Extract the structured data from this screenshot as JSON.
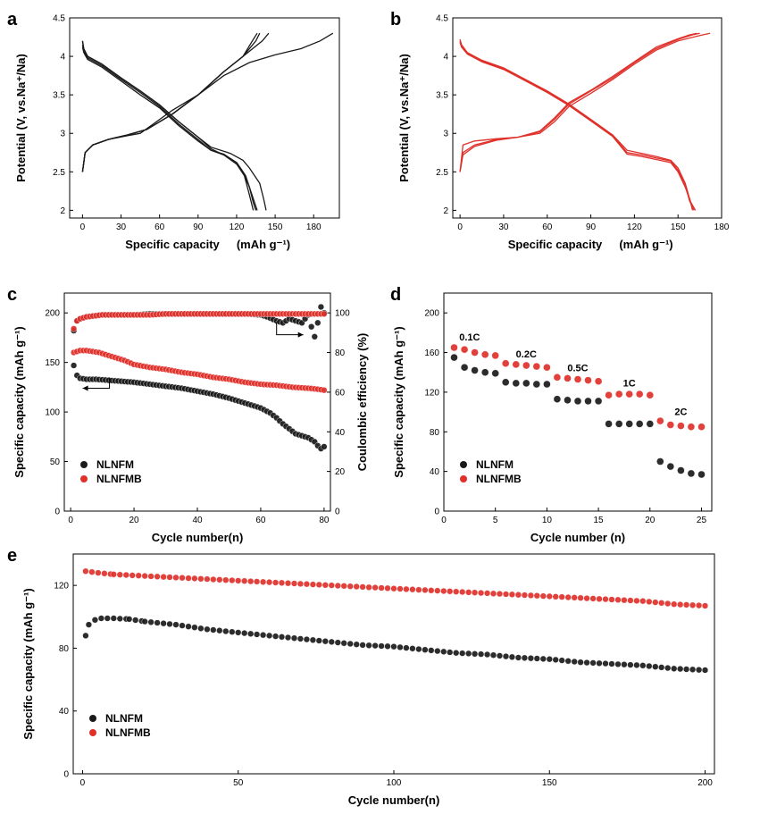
{
  "colors": {
    "black_series": "#1a1a1a",
    "red_series": "#e0302a",
    "axis": "#000000"
  },
  "chart_data": [
    {
      "panel": "a",
      "type": "line",
      "xlabel": "Specific capacity",
      "xunit": "(mAh g⁻¹)",
      "ylabel": "Potential (V, vs.Na⁺/Na)",
      "xlim": [
        -10,
        200
      ],
      "ylim": [
        1.9,
        4.5
      ],
      "xticks": [
        0,
        30,
        60,
        90,
        120,
        150,
        180
      ],
      "yticks": [
        2.0,
        2.5,
        3.0,
        3.5,
        4.0,
        4.5
      ],
      "color": "#1a1a1a",
      "series": [
        {
          "name": "charge-1",
          "x": [
            0,
            2,
            8,
            20,
            35,
            45,
            55,
            70,
            90,
            110,
            130,
            150,
            170,
            185,
            195
          ],
          "y": [
            2.5,
            2.75,
            2.85,
            2.92,
            2.97,
            3.0,
            3.12,
            3.3,
            3.5,
            3.75,
            3.92,
            4.02,
            4.1,
            4.2,
            4.3
          ]
        },
        {
          "name": "charge-2",
          "x": [
            0,
            2,
            8,
            20,
            35,
            50,
            70,
            90,
            110,
            125,
            140,
            145
          ],
          "y": [
            2.5,
            2.75,
            2.85,
            2.92,
            2.98,
            3.05,
            3.25,
            3.5,
            3.8,
            4.0,
            4.2,
            4.3
          ]
        },
        {
          "name": "charge-3",
          "x": [
            0,
            2,
            8,
            20,
            35,
            50,
            70,
            90,
            110,
            125,
            135,
            138
          ],
          "y": [
            2.5,
            2.75,
            2.85,
            2.92,
            2.98,
            3.05,
            3.25,
            3.5,
            3.8,
            4.0,
            4.2,
            4.3
          ]
        },
        {
          "name": "charge-4",
          "x": [
            0,
            2,
            8,
            20,
            35,
            50,
            70,
            90,
            110,
            125,
            133,
            136
          ],
          "y": [
            2.5,
            2.75,
            2.85,
            2.92,
            2.98,
            3.05,
            3.25,
            3.5,
            3.8,
            4.0,
            4.22,
            4.3
          ]
        },
        {
          "name": "discharge-1",
          "x": [
            0,
            1,
            4,
            15,
            30,
            45,
            60,
            75,
            90,
            100,
            115,
            125,
            130,
            138,
            141,
            143
          ],
          "y": [
            4.2,
            4.1,
            4.0,
            3.9,
            3.72,
            3.55,
            3.37,
            3.15,
            2.95,
            2.82,
            2.74,
            2.65,
            2.55,
            2.35,
            2.15,
            2.0
          ]
        },
        {
          "name": "discharge-2",
          "x": [
            0,
            1,
            4,
            15,
            30,
            45,
            60,
            75,
            90,
            100,
            110,
            120,
            125,
            130,
            133,
            135
          ],
          "y": [
            4.2,
            4.1,
            4.0,
            3.9,
            3.72,
            3.55,
            3.37,
            3.15,
            2.95,
            2.8,
            2.72,
            2.62,
            2.5,
            2.3,
            2.1,
            2.0
          ]
        },
        {
          "name": "discharge-3",
          "x": [
            0,
            1,
            4,
            15,
            30,
            45,
            60,
            75,
            90,
            100,
            110,
            120,
            126,
            130,
            133
          ],
          "y": [
            4.15,
            4.07,
            3.98,
            3.88,
            3.7,
            3.53,
            3.35,
            3.12,
            2.92,
            2.78,
            2.72,
            2.6,
            2.45,
            2.2,
            2.0
          ]
        },
        {
          "name": "discharge-4",
          "x": [
            0,
            1,
            4,
            15,
            30,
            45,
            60,
            75,
            90,
            100,
            110,
            120,
            127,
            132,
            136
          ],
          "y": [
            4.12,
            4.05,
            3.96,
            3.86,
            3.68,
            3.5,
            3.33,
            3.1,
            2.9,
            2.78,
            2.73,
            2.62,
            2.45,
            2.2,
            2.0
          ]
        }
      ]
    },
    {
      "panel": "b",
      "type": "line",
      "xlabel": "Specific capacity",
      "xunit": "(mAh g⁻¹)",
      "ylabel": "Potential (V, vs.Na⁺/Na)",
      "xlim": [
        -5,
        180
      ],
      "ylim": [
        1.9,
        4.5
      ],
      "xticks": [
        0,
        30,
        60,
        90,
        120,
        150,
        180
      ],
      "yticks": [
        2.0,
        2.5,
        3.0,
        3.5,
        4.0,
        4.5
      ],
      "color": "#e0302a",
      "series": [
        {
          "name": "charge-1",
          "x": [
            0,
            2,
            10,
            25,
            40,
            55,
            65,
            75,
            90,
            105,
            120,
            135,
            150,
            165,
            172
          ],
          "y": [
            2.5,
            2.85,
            2.9,
            2.93,
            2.95,
            3.0,
            3.15,
            3.35,
            3.52,
            3.7,
            3.9,
            4.08,
            4.2,
            4.27,
            4.3
          ]
        },
        {
          "name": "charge-2",
          "x": [
            0,
            2,
            10,
            25,
            40,
            55,
            65,
            75,
            90,
            105,
            120,
            135,
            150,
            160,
            165
          ],
          "y": [
            2.5,
            2.75,
            2.85,
            2.92,
            2.95,
            3.02,
            3.18,
            3.38,
            3.55,
            3.72,
            3.92,
            4.1,
            4.22,
            4.28,
            4.3
          ]
        },
        {
          "name": "charge-3",
          "x": [
            0,
            2,
            10,
            25,
            40,
            55,
            65,
            75,
            90,
            105,
            120,
            135,
            150,
            158,
            163
          ],
          "y": [
            2.5,
            2.72,
            2.83,
            2.91,
            2.95,
            3.03,
            3.2,
            3.4,
            3.56,
            3.74,
            3.93,
            4.12,
            4.23,
            4.28,
            4.3
          ]
        },
        {
          "name": "discharge-1",
          "x": [
            0,
            1,
            5,
            15,
            30,
            45,
            60,
            75,
            90,
            105,
            115,
            125,
            135,
            145,
            150,
            155,
            158,
            160
          ],
          "y": [
            4.22,
            4.15,
            4.05,
            3.95,
            3.85,
            3.7,
            3.55,
            3.38,
            3.18,
            2.98,
            2.78,
            2.74,
            2.7,
            2.65,
            2.55,
            2.35,
            2.15,
            2.0
          ]
        },
        {
          "name": "discharge-2",
          "x": [
            0,
            1,
            5,
            15,
            30,
            45,
            60,
            75,
            90,
            105,
            115,
            125,
            135,
            145,
            150,
            155,
            158,
            161
          ],
          "y": [
            4.2,
            4.13,
            4.04,
            3.94,
            3.84,
            3.69,
            3.54,
            3.37,
            3.17,
            2.97,
            2.75,
            2.72,
            2.68,
            2.64,
            2.52,
            2.32,
            2.12,
            2.0
          ]
        },
        {
          "name": "discharge-3",
          "x": [
            0,
            1,
            5,
            15,
            30,
            45,
            60,
            75,
            90,
            105,
            115,
            125,
            135,
            145,
            150,
            155,
            159,
            162
          ],
          "y": [
            4.18,
            4.12,
            4.03,
            3.93,
            3.83,
            3.68,
            3.53,
            3.36,
            3.16,
            2.96,
            2.73,
            2.7,
            2.66,
            2.62,
            2.5,
            2.3,
            2.1,
            2.0
          ]
        }
      ]
    },
    {
      "panel": "c",
      "type": "scatter",
      "xlabel": "Cycle number(n)",
      "ylabel": "Specific capacity (mAh g⁻¹)",
      "ylabel_right": "Coulombic efficiency (%)",
      "xlim": [
        -2,
        82
      ],
      "ylim": [
        0,
        220
      ],
      "ylim_right": [
        0,
        110
      ],
      "xticks": [
        0,
        20,
        40,
        60,
        80
      ],
      "yticks": [
        0,
        50,
        100,
        150,
        200
      ],
      "yticks_right": [
        0,
        20,
        40,
        60,
        80,
        100
      ],
      "legend": [
        "NLNFM",
        "NLNFMB"
      ],
      "series": [
        {
          "name": "NLNFM",
          "axis": "left",
          "color": "#1a1a1a",
          "x": [
            1,
            2,
            3,
            5,
            8,
            12,
            16,
            20,
            25,
            30,
            35,
            40,
            45,
            50,
            55,
            60,
            63,
            65,
            67,
            69,
            71,
            73,
            75,
            77,
            78,
            79,
            80
          ],
          "y": [
            147,
            137,
            134,
            133,
            133,
            132,
            131,
            130,
            128,
            126,
            124,
            121,
            118,
            114,
            109,
            104,
            99,
            94,
            88,
            83,
            78,
            76,
            74,
            70,
            66,
            63,
            65
          ]
        },
        {
          "name": "NLNFMB",
          "axis": "left",
          "color": "#e0302a",
          "x": [
            1,
            3,
            5,
            7,
            9,
            11,
            13,
            15,
            17,
            20,
            25,
            30,
            35,
            40,
            45,
            50,
            55,
            60,
            65,
            70,
            75,
            78,
            80
          ],
          "y": [
            160,
            162,
            162,
            161,
            160,
            158,
            156,
            154,
            152,
            148,
            145,
            143,
            140,
            138,
            135,
            133,
            130,
            128,
            127,
            125,
            124,
            123,
            122
          ]
        },
        {
          "name": "NLNFM-CE",
          "axis": "right",
          "color": "#1a1a1a",
          "x": [
            1,
            2,
            3,
            5,
            10,
            15,
            20,
            25,
            30,
            35,
            40,
            45,
            50,
            55,
            60,
            62,
            65,
            67,
            69,
            71,
            73,
            75,
            76,
            77,
            78,
            79,
            80
          ],
          "y": [
            91,
            96,
            97,
            98,
            99,
            99,
            99,
            99.5,
            99.5,
            99.5,
            99.5,
            99.5,
            99.5,
            99.5,
            99,
            98,
            96,
            95,
            97,
            96,
            95,
            99,
            93,
            88,
            95,
            103,
            100
          ]
        },
        {
          "name": "NLNFMB-CE",
          "axis": "right",
          "color": "#e0302a",
          "x": [
            1,
            2,
            3,
            5,
            10,
            15,
            20,
            25,
            30,
            35,
            40,
            45,
            50,
            55,
            60,
            65,
            70,
            75,
            80
          ],
          "y": [
            92,
            96,
            97,
            98,
            99,
            99,
            99,
            99,
            99.5,
            99.5,
            99.5,
            99.5,
            99.5,
            99.5,
            99.5,
            99.5,
            99.5,
            99.5,
            99.5
          ]
        }
      ]
    },
    {
      "panel": "d",
      "type": "scatter",
      "xlabel": "Cycle number (n)",
      "ylabel": "Specific capacity (mAh g⁻¹)",
      "xlim": [
        0,
        26
      ],
      "ylim": [
        0,
        220
      ],
      "xticks": [
        0,
        5,
        10,
        15,
        20,
        25
      ],
      "yticks": [
        0,
        40,
        80,
        120,
        160,
        200
      ],
      "legend": [
        "NLNFM",
        "NLNFMB"
      ],
      "rate_labels": [
        {
          "text": "0.1C",
          "x": 2.5,
          "y": 172
        },
        {
          "text": "0.2C",
          "x": 8,
          "y": 155
        },
        {
          "text": "0.5C",
          "x": 13,
          "y": 141
        },
        {
          "text": "1C",
          "x": 18,
          "y": 126
        },
        {
          "text": "2C",
          "x": 23,
          "y": 97
        }
      ],
      "series": [
        {
          "name": "NLNFM",
          "color": "#1a1a1a",
          "x": [
            1,
            2,
            3,
            4,
            5,
            6,
            7,
            8,
            9,
            10,
            11,
            12,
            13,
            14,
            15,
            16,
            17,
            18,
            19,
            20,
            21,
            22,
            23,
            24,
            25
          ],
          "y": [
            155,
            145,
            142,
            140,
            139,
            130,
            129,
            129,
            128,
            128,
            113,
            112,
            111,
            111,
            111,
            88,
            88,
            88,
            88,
            88,
            50,
            45,
            41,
            38,
            37
          ]
        },
        {
          "name": "NLNFMB",
          "color": "#e0302a",
          "x": [
            1,
            2,
            3,
            4,
            5,
            6,
            7,
            8,
            9,
            10,
            11,
            12,
            13,
            14,
            15,
            16,
            17,
            18,
            19,
            20,
            21,
            22,
            23,
            24,
            25
          ],
          "y": [
            165,
            163,
            160,
            158,
            157,
            149,
            148,
            147,
            146,
            145,
            135,
            134,
            133,
            132,
            131,
            117,
            118,
            118,
            118,
            117,
            91,
            87,
            86,
            85,
            85
          ]
        }
      ]
    },
    {
      "panel": "e",
      "type": "scatter",
      "xlabel": "Cycle number(n)",
      "ylabel": "Specific capacity (mAh g⁻¹)",
      "xlim": [
        -3,
        203
      ],
      "ylim": [
        0,
        140
      ],
      "xticks": [
        0,
        50,
        100,
        150,
        200
      ],
      "yticks": [
        0,
        40,
        80,
        120
      ],
      "legend": [
        "NLNFM",
        "NLNFMB"
      ],
      "series": [
        {
          "name": "NLNFM",
          "color": "#1a1a1a",
          "x": [
            1,
            2,
            4,
            6,
            8,
            10,
            15,
            20,
            30,
            40,
            50,
            60,
            70,
            80,
            90,
            100,
            110,
            120,
            130,
            140,
            150,
            160,
            170,
            180,
            190,
            200
          ],
          "y": [
            88,
            95,
            98,
            99,
            99,
            99,
            98.5,
            97,
            95,
            92,
            90,
            88,
            86,
            84,
            82,
            81,
            79,
            77,
            76,
            74,
            73,
            71,
            70,
            69,
            67,
            66
          ]
        },
        {
          "name": "NLNFMB",
          "color": "#e0302a",
          "x": [
            1,
            5,
            10,
            20,
            30,
            40,
            50,
            60,
            70,
            80,
            90,
            100,
            110,
            120,
            130,
            140,
            150,
            160,
            170,
            180,
            190,
            200
          ],
          "y": [
            129,
            128,
            127,
            126,
            125,
            124,
            123,
            122,
            121,
            120,
            119,
            118,
            117,
            116,
            115,
            114,
            113,
            112,
            111,
            110,
            108,
            107
          ]
        }
      ]
    }
  ],
  "panels": {
    "a": {
      "label": "a"
    },
    "b": {
      "label": "b"
    },
    "c": {
      "label": "c"
    },
    "d": {
      "label": "d"
    },
    "e": {
      "label": "e"
    }
  }
}
